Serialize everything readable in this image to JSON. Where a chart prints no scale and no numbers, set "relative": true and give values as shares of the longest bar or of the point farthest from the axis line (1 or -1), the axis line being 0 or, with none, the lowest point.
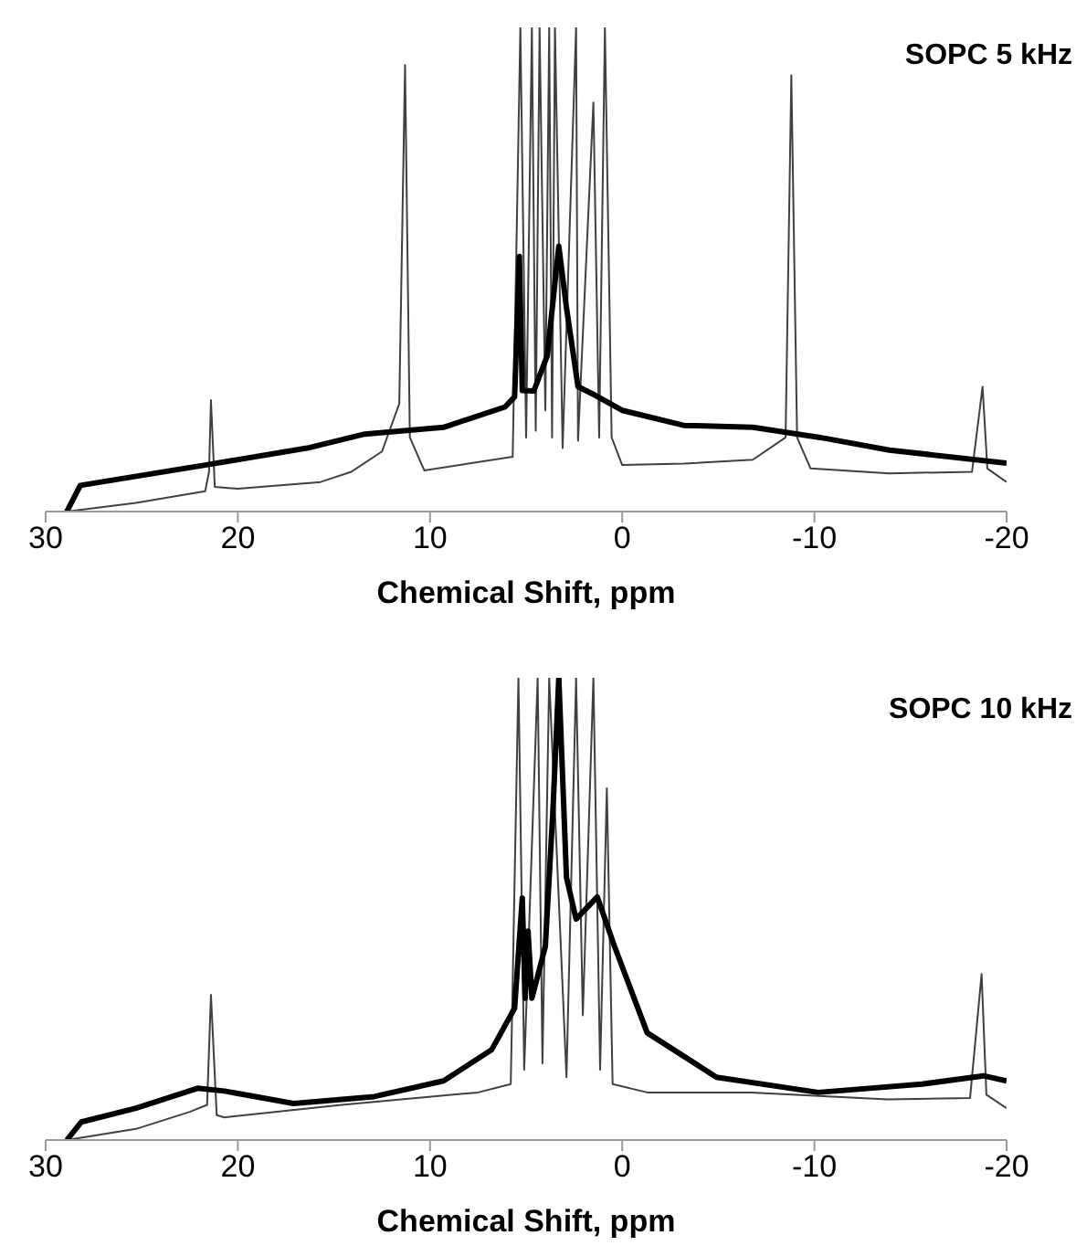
{
  "chart_data": [
    {
      "type": "line",
      "title": "SOPC 5 kHz",
      "xlabel": "Chemical Shift, ppm",
      "relative": true,
      "xlim": [
        30,
        -20
      ],
      "xticks": [
        30,
        20,
        10,
        0,
        -10,
        -20
      ],
      "marker": "none",
      "line_style": "solid",
      "series": [
        {
          "color": "#000000",
          "x": [
            28.9,
            28.2,
            21.7,
            16.4,
            13.4,
            9.3,
            6.1,
            5.6,
            5.35,
            5.2,
            4.6,
            3.9,
            3.3,
            2.9,
            2.3,
            1.4,
            0.0,
            -3.2,
            -6.8,
            -10.3,
            -13.9,
            -20
          ],
          "values": [
            0,
            0.054,
            0.096,
            0.131,
            0.16,
            0.174,
            0.216,
            0.237,
            0.527,
            0.25,
            0.249,
            0.322,
            0.548,
            0.421,
            0.258,
            0.24,
            0.209,
            0.178,
            0.174,
            0.153,
            0.127,
            0.1
          ]
        },
        {
          "color": "#404040",
          "x": [
            28.9,
            25.3,
            21.7,
            21.5,
            21.4,
            21.2,
            20,
            15.7,
            14.1,
            12.5,
            11.6,
            11.3,
            11.05,
            10.3,
            5.7,
            5.3,
            5.0,
            4.7,
            4.5,
            4.3,
            4.0,
            3.8,
            3.65,
            3.5,
            3.1,
            2.4,
            2.3,
            1.5,
            1.2,
            0.9,
            0.55,
            0.0,
            -3.2,
            -6.8,
            -8.5,
            -8.8,
            -9.1,
            -9.8,
            -13.9,
            -18.2,
            -18.75,
            -19.0,
            -20
          ],
          "values": [
            0,
            0.018,
            0.042,
            0.082,
            0.23,
            0.051,
            0.047,
            0.061,
            0.082,
            0.124,
            0.223,
            0.922,
            0.153,
            0.085,
            0.113,
            1,
            0.153,
            1,
            0.167,
            1,
            0.209,
            1,
            0.153,
            1,
            0.131,
            1,
            0.146,
            0.845,
            0.153,
            1,
            0.153,
            0.096,
            0.099,
            0.107,
            0.153,
            0.901,
            0.153,
            0.089,
            0.079,
            0.082,
            0.258,
            0.089,
            0.061
          ]
        }
      ]
    },
    {
      "type": "line",
      "title": "SOPC 10 kHz",
      "xlabel": "Chemical Shift, ppm",
      "relative": true,
      "xlim": [
        30,
        -20
      ],
      "xticks": [
        30,
        20,
        10,
        0,
        -10,
        -20
      ],
      "marker": "none",
      "line_style": "solid",
      "series": [
        {
          "color": "#000000",
          "x": [
            28.9,
            28.15,
            25.3,
            22.1,
            20.7,
            17.1,
            12.9,
            9.3,
            6.8,
            5.6,
            5.2,
            5.05,
            4.9,
            4.7,
            4.0,
            3.6,
            3.3,
            2.9,
            2.4,
            1.3,
            0.4,
            -1.3,
            -4.9,
            -10.2,
            -15.6,
            -18.8,
            -20
          ],
          "values": [
            0,
            0.039,
            0.069,
            0.112,
            0.106,
            0.079,
            0.094,
            0.128,
            0.195,
            0.285,
            0.523,
            0.307,
            0.452,
            0.307,
            0.419,
            0.717,
            1,
            0.568,
            0.478,
            0.526,
            0.419,
            0.232,
            0.136,
            0.103,
            0.121,
            0.139,
            0.128
          ]
        },
        {
          "color": "#404040",
          "x": [
            28.9,
            25.3,
            22.5,
            21.6,
            21.4,
            21.1,
            20.7,
            14.6,
            7.5,
            5.8,
            5.4,
            5.1,
            4.4,
            4.15,
            3.8,
            2.9,
            2.4,
            2.05,
            1.5,
            1.15,
            0.8,
            0.5,
            -1.3,
            -6.7,
            -13.8,
            -18.1,
            -18.7,
            -18.95,
            -20
          ],
          "values": [
            0,
            0.024,
            0.061,
            0.076,
            0.314,
            0.054,
            0.049,
            0.076,
            0.103,
            0.121,
            1,
            0.152,
            1,
            0.166,
            1,
            0.136,
            1,
            0.27,
            1,
            0.152,
            0.761,
            0.121,
            0.103,
            0.103,
            0.088,
            0.091,
            0.359,
            0.098,
            0.069
          ]
        }
      ]
    }
  ]
}
